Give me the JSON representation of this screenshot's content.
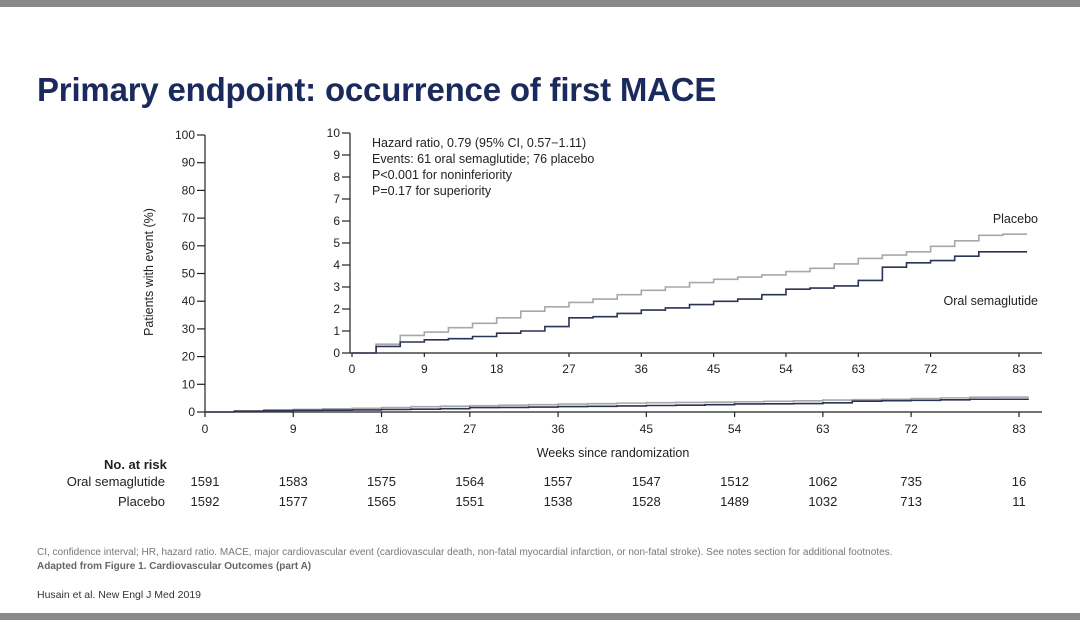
{
  "title": "Primary endpoint: occurrence of first MACE",
  "chart_data": [
    {
      "type": "line",
      "name": "main",
      "ylabel": "Patients with event (%)",
      "xlabel": "Weeks since randomization",
      "ylim": [
        0,
        100
      ],
      "xlim": [
        0,
        85
      ],
      "yticks": [
        0,
        10,
        20,
        30,
        40,
        50,
        60,
        70,
        80,
        90,
        100
      ],
      "xticks": [
        0,
        9,
        18,
        27,
        36,
        45,
        54,
        63,
        72,
        83
      ],
      "series": [
        {
          "name": "Placebo",
          "color": "#a8a8a8",
          "x": [
            0,
            3,
            6,
            9,
            12,
            15,
            18,
            21,
            24,
            27,
            30,
            33,
            36,
            39,
            42,
            45,
            48,
            51,
            54,
            57,
            60,
            63,
            66,
            69,
            72,
            75,
            78,
            81,
            84
          ],
          "y": [
            0,
            0.4,
            0.8,
            0.95,
            1.15,
            1.35,
            1.6,
            1.9,
            2.1,
            2.3,
            2.45,
            2.65,
            2.85,
            3.0,
            3.2,
            3.35,
            3.45,
            3.55,
            3.7,
            3.85,
            4.05,
            4.3,
            4.45,
            4.6,
            4.85,
            5.1,
            5.35,
            5.4,
            5.4
          ]
        },
        {
          "name": "Oral semaglutide",
          "color": "#2b3356",
          "x": [
            0,
            3,
            6,
            9,
            12,
            15,
            18,
            21,
            24,
            27,
            30,
            33,
            36,
            39,
            42,
            45,
            48,
            51,
            54,
            57,
            60,
            63,
            66,
            69,
            72,
            75,
            78,
            81,
            84
          ],
          "y": [
            0,
            0.3,
            0.5,
            0.6,
            0.65,
            0.75,
            0.9,
            1.0,
            1.2,
            1.6,
            1.65,
            1.8,
            1.95,
            2.05,
            2.2,
            2.35,
            2.45,
            2.65,
            2.9,
            2.95,
            3.05,
            3.3,
            3.9,
            4.1,
            4.2,
            4.4,
            4.6,
            4.6,
            4.6
          ]
        }
      ]
    },
    {
      "type": "line",
      "name": "inset",
      "ylim": [
        0,
        10
      ],
      "xlim": [
        0,
        84
      ],
      "yticks": [
        0,
        1,
        2,
        3,
        4,
        5,
        6,
        7,
        8,
        9,
        10
      ],
      "xticks": [
        0,
        9,
        18,
        27,
        36,
        45,
        54,
        63,
        72,
        83
      ],
      "annotations": [
        "Hazard ratio, 0.79 (95% CI, 0.57−1.11)",
        "Events: 61 oral semaglutide; 76 placebo",
        "P<0.001 for noninferiority",
        "P=0.17 for superiority"
      ],
      "series_labels": [
        "Placebo",
        "Oral semaglutide"
      ]
    }
  ],
  "risk_table": {
    "header": "No. at risk",
    "rows": [
      {
        "label": "Oral semaglutide",
        "values": [
          "1591",
          "1583",
          "1575",
          "1564",
          "1557",
          "1547",
          "1512",
          "1062",
          "735",
          "16"
        ]
      },
      {
        "label": "Placebo",
        "values": [
          "1592",
          "1577",
          "1565",
          "1551",
          "1538",
          "1528",
          "1489",
          "1032",
          "713",
          "11"
        ]
      }
    ]
  },
  "footnotes": {
    "line1": "CI, confidence interval; HR, hazard ratio. MACE, major cardiovascular event (cardiovascular death, non-fatal myocardial infarction, or non-fatal stroke). See notes section for additional footnotes.",
    "line2": "Adapted from Figure 1. Cardiovascular Outcomes (part A)",
    "citation": "Husain et al. New Engl J Med 2019"
  },
  "colors": {
    "title": "#1b2a5c",
    "placebo": "#a8a8a8",
    "semaglutide": "#2b3356",
    "axis": "#222222"
  }
}
